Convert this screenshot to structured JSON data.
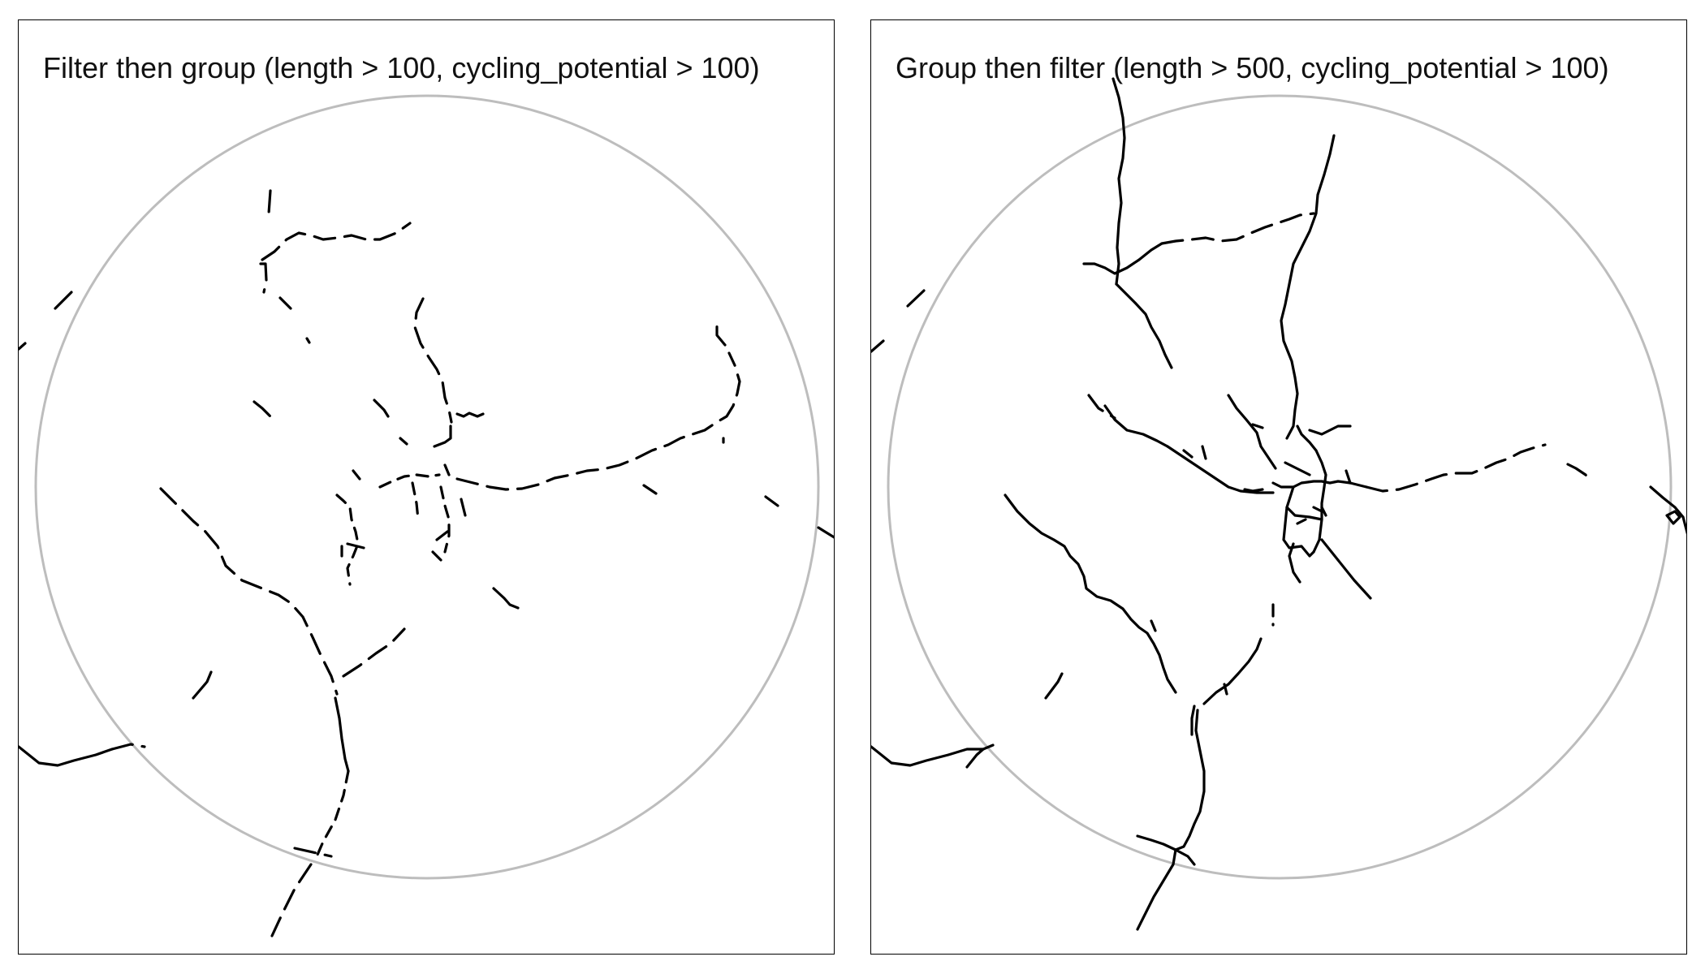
{
  "panels": [
    {
      "title": "Filter then group (length > 100, cycling_potential > 100)"
    },
    {
      "title": "Group then filter (length > 500, cycling_potential > 100)"
    }
  ],
  "colors": {
    "boundary": "#bdbdbd",
    "route": "#000000",
    "frame": "#000000",
    "background": "#ffffff"
  }
}
